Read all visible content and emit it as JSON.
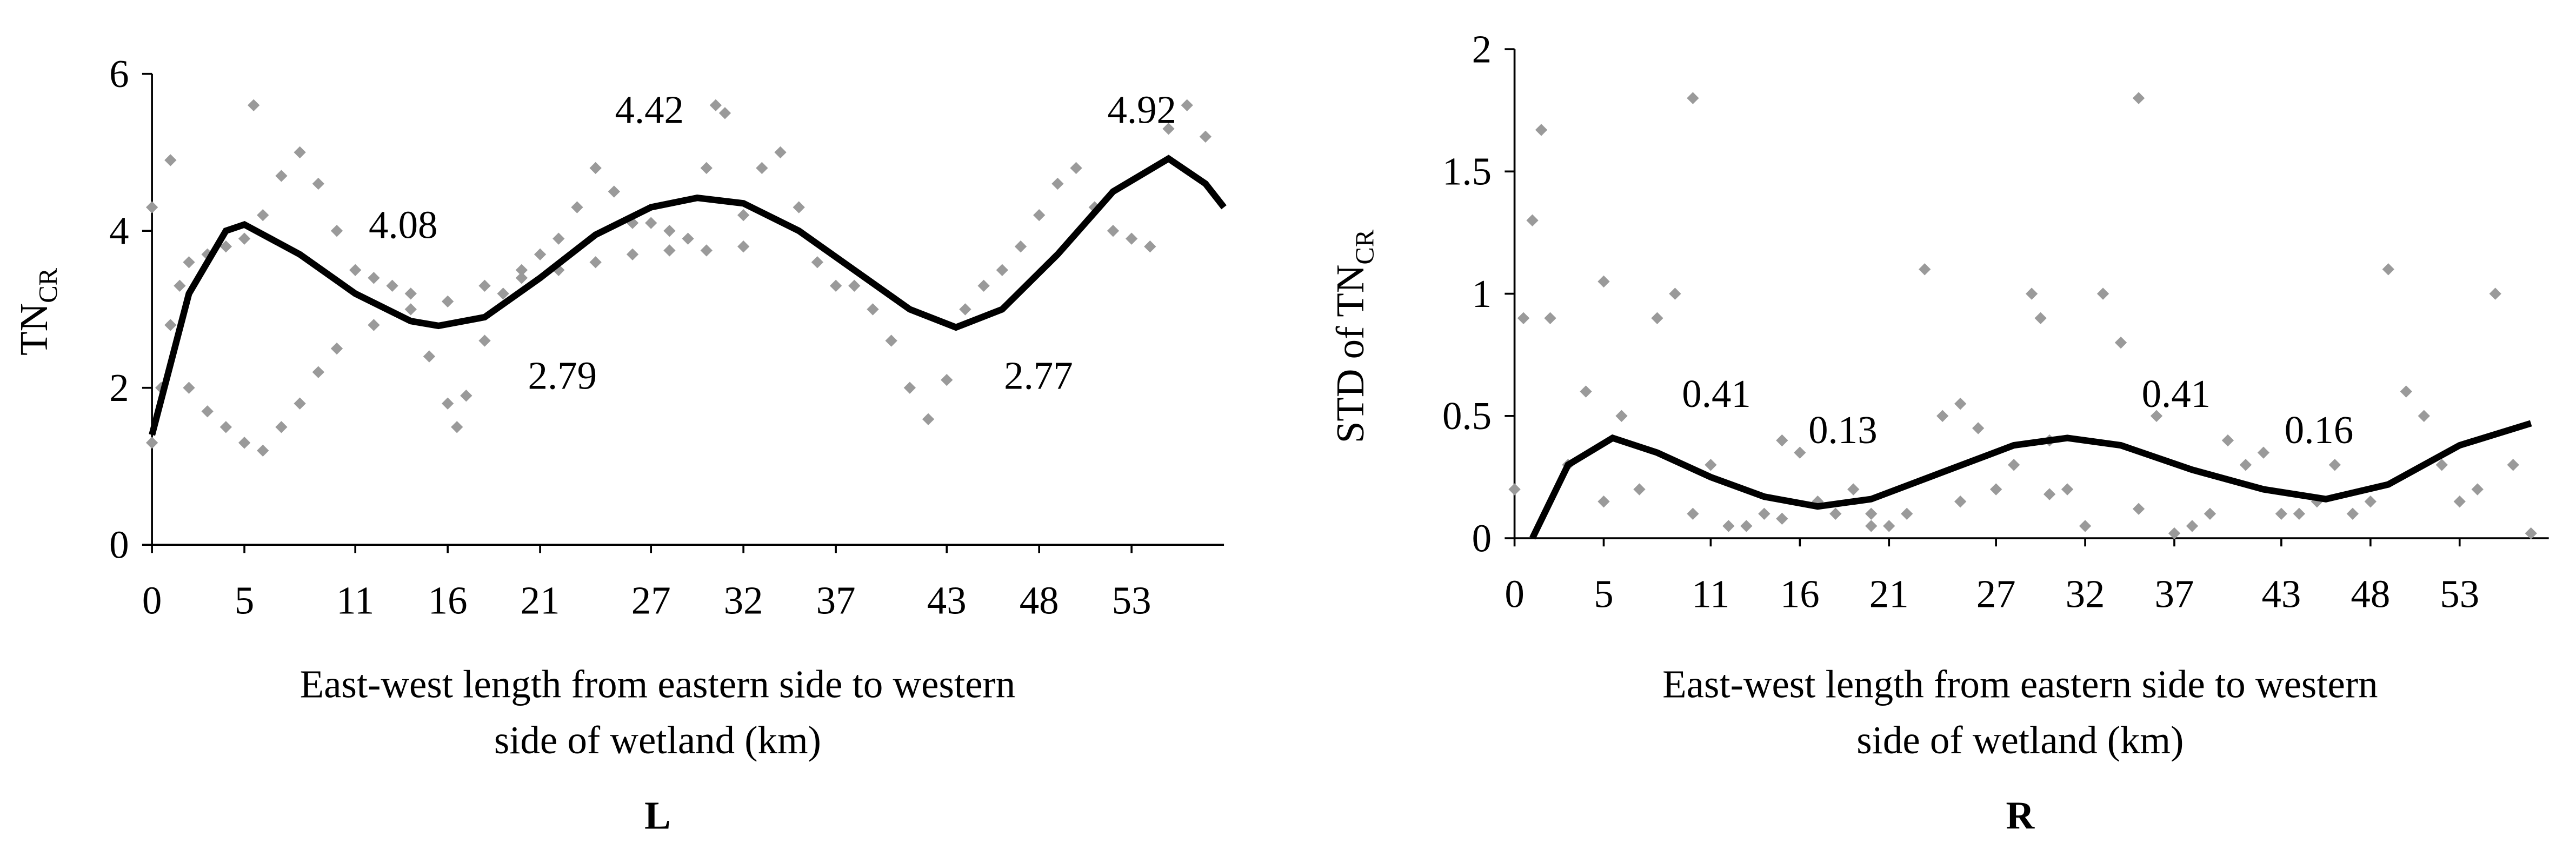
{
  "chart_data": [
    {
      "type": "scatter",
      "title": "L",
      "ylabel": "TN",
      "ylabel_sub": "CR",
      "xlabel": [
        "East-west length from eastern side to western",
        "side of wetland (km)"
      ],
      "xlim": [
        0,
        58
      ],
      "xticks": [
        0,
        5,
        11,
        16,
        21,
        27,
        32,
        37,
        43,
        48,
        53
      ],
      "ylim": [
        0,
        6
      ],
      "yticks": [
        0,
        2,
        4,
        6
      ],
      "annotations": [
        "4.08",
        "2.79",
        "4.42",
        "2.77",
        "4.92"
      ],
      "series": [
        {
          "type": "scatter",
          "color": "#9a9a9a",
          "x": [
            0,
            0.5,
            1,
            1.5,
            2,
            3,
            4,
            5,
            6,
            7,
            8,
            9,
            10,
            11,
            12,
            13,
            14,
            15,
            16,
            16.5,
            17,
            18,
            19,
            20,
            21,
            22,
            23,
            24,
            25,
            26,
            27,
            28,
            29,
            30,
            30.5,
            31,
            32,
            33,
            34,
            35,
            36,
            37,
            38,
            39,
            40,
            41,
            42,
            43,
            44,
            45,
            46,
            47,
            48,
            49,
            50,
            51,
            52,
            53,
            54,
            55,
            56,
            57,
            2,
            3,
            4,
            5,
            6,
            7,
            8,
            9,
            10,
            12,
            14,
            16,
            18,
            20,
            22,
            24,
            26,
            28,
            30,
            32,
            5.5,
            1,
            0
          ],
          "values": [
            1.3,
            2,
            2.8,
            3.3,
            3.6,
            3.7,
            3.8,
            3.9,
            4.2,
            4.7,
            5,
            4.6,
            4,
            3.5,
            3.4,
            3.3,
            3.2,
            2.4,
            1.8,
            1.5,
            1.9,
            2.6,
            3.2,
            3.5,
            3.7,
            3.9,
            4.3,
            4.8,
            4.5,
            4.1,
            4.1,
            4,
            3.9,
            4.8,
            5.6,
            5.5,
            4.2,
            4.8,
            5,
            4.3,
            3.6,
            3.3,
            3.3,
            3,
            2.6,
            2,
            1.6,
            2.1,
            3,
            3.3,
            3.5,
            3.8,
            4.2,
            4.6,
            4.8,
            4.3,
            4,
            3.9,
            3.8,
            5.3,
            5.6,
            5.2,
            2,
            1.7,
            1.5,
            1.3,
            1.2,
            1.5,
            1.8,
            2.2,
            2.5,
            2.8,
            3,
            3.1,
            3.3,
            3.4,
            3.5,
            3.6,
            3.7,
            3.75,
            3.75,
            3.8,
            5.6,
            4.9,
            4.3
          ]
        },
        {
          "type": "line",
          "color": "#000000",
          "x": [
            0,
            2,
            4,
            5,
            8,
            11,
            14,
            15.5,
            18,
            21,
            24,
            27,
            29.5,
            32,
            35,
            38,
            41,
            43.5,
            46,
            49,
            52,
            55,
            57,
            58
          ],
          "values": [
            1.4,
            3.2,
            4,
            4.08,
            3.7,
            3.2,
            2.85,
            2.79,
            2.9,
            3.4,
            3.95,
            4.3,
            4.42,
            4.35,
            4,
            3.5,
            3,
            2.77,
            3,
            3.7,
            4.5,
            4.92,
            4.6,
            4.3
          ]
        }
      ]
    },
    {
      "type": "scatter",
      "title": "R",
      "ylabel": "STD of  TN",
      "ylabel_sub": "CR",
      "xlabel": [
        "East-west length from eastern side to western",
        "side of wetland (km)"
      ],
      "xlim": [
        0,
        58
      ],
      "xticks": [
        0,
        5,
        11,
        16,
        21,
        27,
        32,
        37,
        43,
        48,
        53
      ],
      "ylim": [
        0,
        2
      ],
      "yticks": [
        0,
        0.5,
        1,
        1.5,
        2
      ],
      "annotations": [
        "0.41",
        "0.13",
        "0.41",
        "0.16"
      ],
      "series": [
        {
          "type": "scatter",
          "color": "#9a9a9a",
          "x": [
            0,
            0.5,
            1,
            1.5,
            2,
            3,
            4,
            5,
            6,
            7,
            8,
            9,
            10,
            11,
            12,
            13,
            14,
            15,
            16,
            17,
            18,
            19,
            20,
            21,
            22,
            23,
            24,
            25,
            26,
            27,
            28,
            29,
            29.5,
            30,
            31,
            32,
            33,
            34,
            35,
            36,
            37,
            38,
            39,
            40,
            41,
            42,
            43,
            44,
            45,
            46,
            47,
            48,
            49,
            50,
            51,
            52,
            53,
            54,
            55,
            56,
            57,
            5,
            10,
            15,
            20,
            25,
            30,
            35
          ],
          "values": [
            0.2,
            0.9,
            1.3,
            1.67,
            0.9,
            0.3,
            0.6,
            1.05,
            0.5,
            0.2,
            0.9,
            1,
            1.8,
            0.3,
            0.05,
            0.05,
            0.1,
            0.4,
            0.35,
            0.15,
            0.1,
            0.2,
            0.05,
            0.05,
            0.1,
            1.1,
            0.5,
            0.55,
            0.45,
            0.2,
            0.3,
            1,
            0.9,
            0.4,
            0.2,
            0.05,
            1,
            0.8,
            1.8,
            0.5,
            0.02,
            0.05,
            0.1,
            0.4,
            0.3,
            0.35,
            0.1,
            0.1,
            0.15,
            0.3,
            0.1,
            0.15,
            1.1,
            0.6,
            0.5,
            0.3,
            0.15,
            0.2,
            1,
            0.3,
            0.02,
            0.15,
            0.1,
            0.08,
            0.1,
            0.15,
            0.18,
            0.12
          ]
        },
        {
          "type": "line",
          "color": "#000000",
          "x": [
            1,
            3,
            5.5,
            8,
            11,
            14,
            17,
            20,
            24,
            28,
            31,
            34,
            38,
            42,
            45.5,
            49,
            53,
            57
          ],
          "values": [
            0,
            0.3,
            0.41,
            0.35,
            0.25,
            0.17,
            0.13,
            0.16,
            0.27,
            0.38,
            0.41,
            0.38,
            0.28,
            0.2,
            0.16,
            0.22,
            0.38,
            0.47
          ]
        }
      ]
    }
  ]
}
